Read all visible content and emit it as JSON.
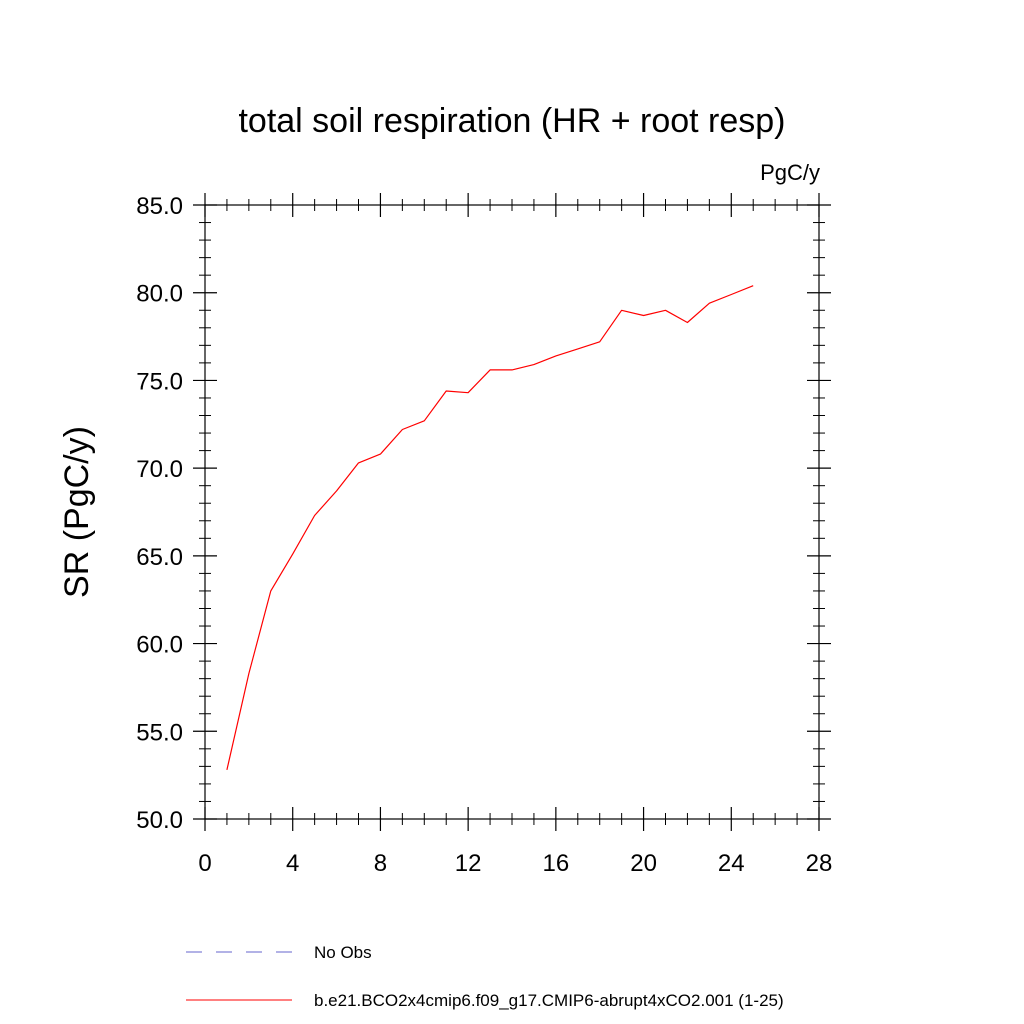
{
  "chart_data": {
    "type": "line",
    "title": "total soil respiration (HR + root resp)",
    "units_label": "PgC/y",
    "ylabel": "SR  (PgC/y)",
    "xlabel": "",
    "xlim": [
      0,
      28
    ],
    "ylim": [
      50,
      85
    ],
    "x_ticks": [
      0,
      4,
      8,
      12,
      16,
      20,
      24,
      28
    ],
    "x_tick_labels": [
      "0",
      "4",
      "8",
      "12",
      "16",
      "20",
      "24",
      "28"
    ],
    "y_ticks": [
      50,
      55,
      60,
      65,
      70,
      75,
      80,
      85
    ],
    "y_tick_labels": [
      "50.0",
      "55.0",
      "60.0",
      "65.0",
      "70.0",
      "75.0",
      "80.0",
      "85.0"
    ],
    "grid": false,
    "legend_position": "bottom",
    "series": [
      {
        "name": "b.e21.BCO2x4cmip6.f09_g17.CMIP6-abrupt4xCO2.001 (1-25)",
        "color": "#ff0000",
        "style": "solid",
        "x": [
          1,
          2,
          3,
          4,
          5,
          6,
          7,
          8,
          9,
          10,
          11,
          12,
          13,
          14,
          15,
          16,
          17,
          18,
          19,
          20,
          21,
          22,
          23,
          24,
          25
        ],
        "y": [
          52.8,
          58.3,
          63.0,
          65.1,
          67.3,
          68.7,
          70.3,
          70.8,
          72.2,
          72.7,
          74.4,
          74.3,
          75.6,
          75.6,
          75.9,
          76.4,
          76.8,
          77.2,
          79.0,
          78.7,
          79.0,
          78.3,
          79.4,
          79.9,
          80.4
        ]
      }
    ],
    "legend": [
      {
        "label": "No Obs",
        "color": "#6666cc",
        "style": "dashed"
      },
      {
        "label": "b.e21.BCO2x4cmip6.f09_g17.CMIP6-abrupt4xCO2.001 (1-25)",
        "color": "#ff0000",
        "style": "solid"
      }
    ]
  }
}
